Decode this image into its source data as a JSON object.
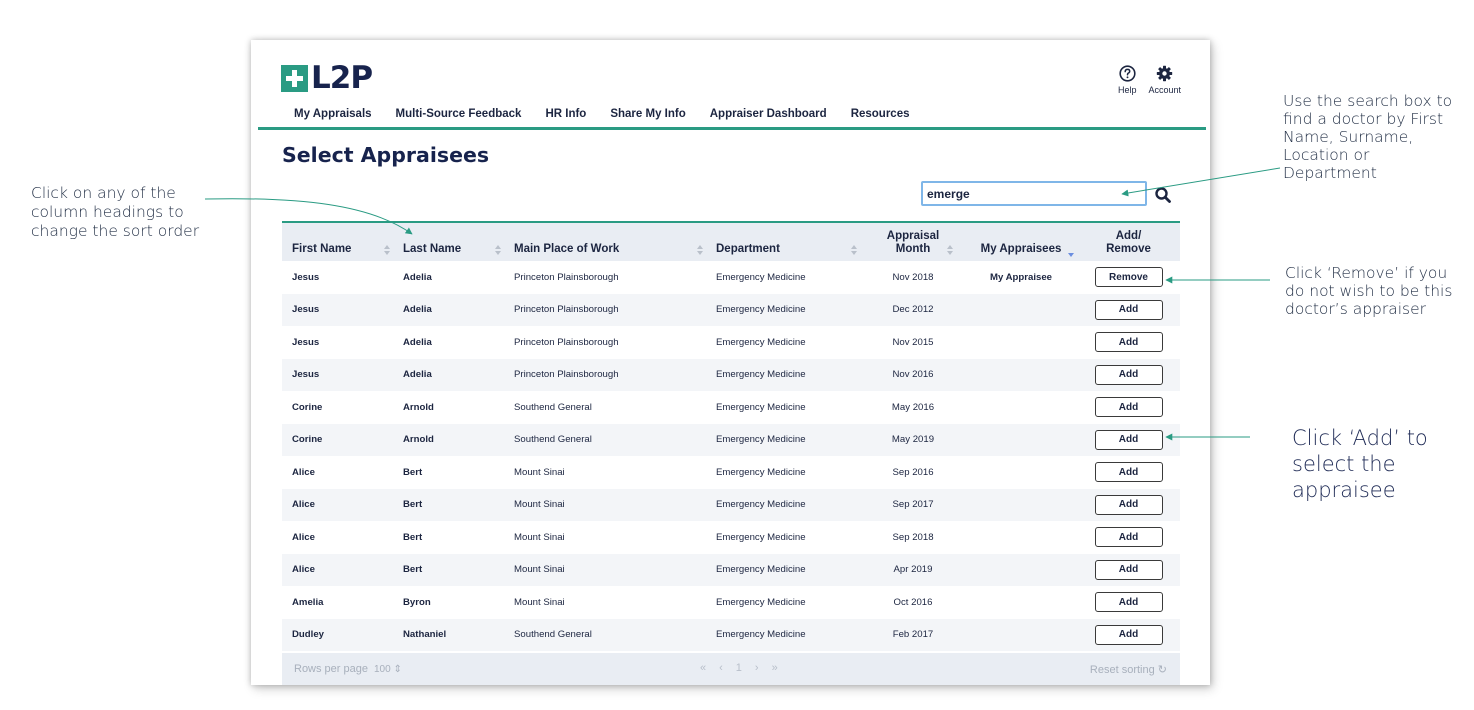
{
  "annotations": {
    "sort_hint": "Click on any of the column headings to change the sort order",
    "search_hint": "Use the search box to find a doctor by First Name, Surname, Location or Department",
    "remove_hint": "Click ‘Remove’ if you do not wish to be this doctor’s appraiser",
    "add_hint": "Click ‘Add’ to select the appraisee"
  },
  "brand": {
    "logo_text": "L2P",
    "accent": "#2a9b83",
    "navy": "#17234d"
  },
  "header": {
    "help_label": "Help",
    "account_label": "Account"
  },
  "nav": {
    "items": [
      "My Appraisals",
      "Multi-Source Feedback",
      "HR Info",
      "Share My Info",
      "Appraiser Dashboard",
      "Resources"
    ]
  },
  "page": {
    "title": "Select Appraisees"
  },
  "search": {
    "value": "emerge",
    "icon": "search-icon"
  },
  "table": {
    "headers": {
      "first_name": "First Name",
      "last_name": "Last Name",
      "place": "Main Place of Work",
      "department": "Department",
      "month_line1": "Appraisal",
      "month_line2": "Month",
      "my_appraisees": "My Appraisees",
      "add_line1": "Add/",
      "add_line2": "Remove"
    },
    "rows": [
      {
        "first": "Jesus",
        "last": "Adelia",
        "place": "Princeton Plainsborough",
        "dept": "Emergency Medicine",
        "month": "Nov 2018",
        "mine": "My Appraisee",
        "action": "Remove"
      },
      {
        "first": "Jesus",
        "last": "Adelia",
        "place": "Princeton Plainsborough",
        "dept": "Emergency Medicine",
        "month": "Dec 2012",
        "mine": "",
        "action": "Add"
      },
      {
        "first": "Jesus",
        "last": "Adelia",
        "place": "Princeton Plainsborough",
        "dept": "Emergency Medicine",
        "month": "Nov 2015",
        "mine": "",
        "action": "Add"
      },
      {
        "first": "Jesus",
        "last": "Adelia",
        "place": "Princeton Plainsborough",
        "dept": "Emergency Medicine",
        "month": "Nov 2016",
        "mine": "",
        "action": "Add"
      },
      {
        "first": "Corine",
        "last": "Arnold",
        "place": "Southend General",
        "dept": "Emergency Medicine",
        "month": "May 2016",
        "mine": "",
        "action": "Add"
      },
      {
        "first": "Corine",
        "last": "Arnold",
        "place": "Southend General",
        "dept": "Emergency Medicine",
        "month": "May 2019",
        "mine": "",
        "action": "Add"
      },
      {
        "first": "Alice",
        "last": "Bert",
        "place": "Mount Sinai",
        "dept": "Emergency Medicine",
        "month": "Sep 2016",
        "mine": "",
        "action": "Add"
      },
      {
        "first": "Alice",
        "last": "Bert",
        "place": "Mount Sinai",
        "dept": "Emergency Medicine",
        "month": "Sep 2017",
        "mine": "",
        "action": "Add"
      },
      {
        "first": "Alice",
        "last": "Bert",
        "place": "Mount Sinai",
        "dept": "Emergency Medicine",
        "month": "Sep 2018",
        "mine": "",
        "action": "Add"
      },
      {
        "first": "Alice",
        "last": "Bert",
        "place": "Mount Sinai",
        "dept": "Emergency Medicine",
        "month": "Apr 2019",
        "mine": "",
        "action": "Add"
      },
      {
        "first": "Amelia",
        "last": "Byron",
        "place": "Mount Sinai",
        "dept": "Emergency Medicine",
        "month": "Oct 2016",
        "mine": "",
        "action": "Add"
      },
      {
        "first": "Dudley",
        "last": "Nathaniel",
        "place": "Southend General",
        "dept": "Emergency Medicine",
        "month": "Feb 2017",
        "mine": "",
        "action": "Add"
      }
    ]
  },
  "footer": {
    "rows_label": "Rows per page",
    "rows_value": "100",
    "pager": [
      "«",
      "‹",
      "1",
      "›",
      "»"
    ],
    "reset_label": "Reset sorting"
  }
}
